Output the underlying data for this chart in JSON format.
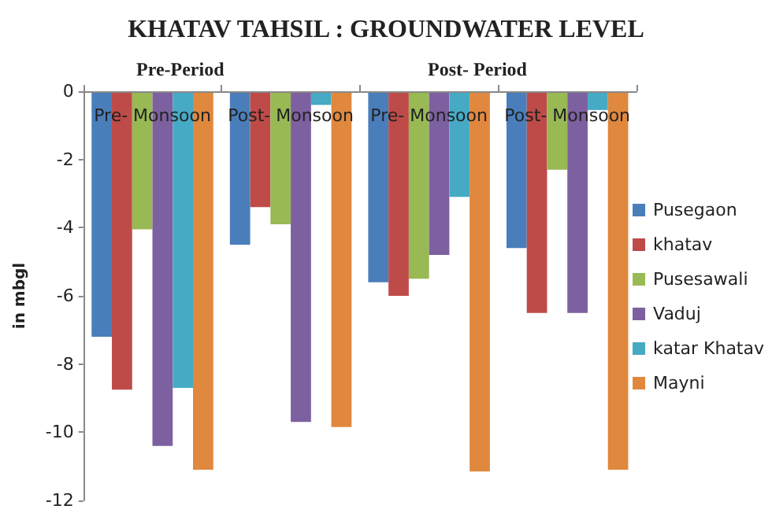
{
  "chart_data": {
    "type": "bar",
    "title": "KHATAV TAHSIL : GROUNDWATER LEVEL",
    "ylabel": "in mbgl",
    "annotations": [
      "Pre-Period",
      "Post- Period"
    ],
    "categories": [
      "Pre- Monsoon",
      "Post- Monsoon",
      "Pre- Monsoon",
      "Post- Monsoon"
    ],
    "series": [
      {
        "name": "Pusegaon",
        "color": "#4a7ebb",
        "values": [
          -7.2,
          -4.5,
          -5.6,
          -4.6
        ]
      },
      {
        "name": "khatav",
        "color": "#be4b48",
        "values": [
          -8.75,
          -3.4,
          -6.0,
          -6.5
        ]
      },
      {
        "name": "Pusesawali",
        "color": "#98b954",
        "values": [
          -4.05,
          -3.9,
          -5.5,
          -2.3
        ]
      },
      {
        "name": "Vaduj",
        "color": "#7d60a0",
        "values": [
          -10.4,
          -9.7,
          -4.8,
          -6.5
        ]
      },
      {
        "name": "katar Khatav",
        "color": "#46aac5",
        "values": [
          -8.7,
          -0.4,
          -3.1,
          -0.55
        ]
      },
      {
        "name": "Mayni",
        "color": "#e0883e",
        "values": [
          -11.1,
          -9.85,
          -11.15,
          -11.1
        ]
      }
    ],
    "ylim": [
      -12,
      0
    ],
    "yticks": [
      -12,
      -10,
      -8,
      -6,
      -4,
      -2,
      0
    ],
    "grid": false,
    "legend": "right"
  }
}
